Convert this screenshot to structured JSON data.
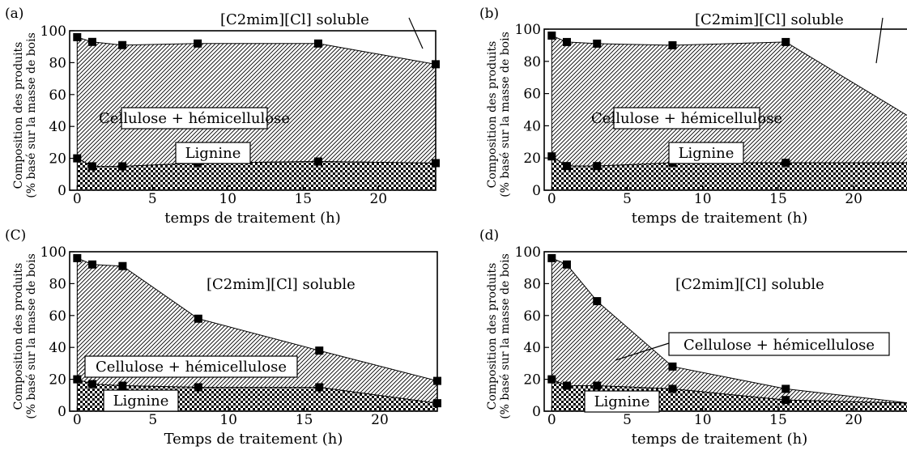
{
  "chart_data": [
    {
      "panel_label": "(a)",
      "type": "area",
      "xlabel": "temps de traitement (h)",
      "ylabel_lines": [
        "Composition des produits",
        "(% basé sur la masse de bois"
      ],
      "xlim": [
        -0.5,
        23.8
      ],
      "ylim": [
        0,
        100
      ],
      "xticks": [
        0,
        5,
        10,
        15,
        20
      ],
      "yticks": [
        0,
        20,
        40,
        60,
        80,
        100
      ],
      "series": [
        {
          "name": "Cellulose + hémicellulose",
          "x": [
            0,
            1,
            3,
            8,
            16,
            23.8
          ],
          "y": [
            96,
            93,
            91,
            92,
            92,
            79
          ]
        },
        {
          "name": "Lignine",
          "x": [
            0,
            1,
            3,
            8,
            16,
            23.8
          ],
          "y": [
            20,
            15,
            15,
            17,
            18,
            17
          ]
        }
      ],
      "region_label": "[C2mim][Cl] soluble"
    },
    {
      "panel_label": "(b)",
      "type": "area",
      "xlabel": "temps de traitement (h)",
      "ylabel_lines": [
        "Composition des produits",
        "(% basé sur la masse de bois"
      ],
      "xlim": [
        -0.5,
        23.8
      ],
      "ylim": [
        0,
        100
      ],
      "xticks": [
        0,
        5,
        10,
        15,
        20
      ],
      "yticks": [
        0,
        20,
        40,
        60,
        80,
        100
      ],
      "series": [
        {
          "name": "Cellulose + hémicellulose",
          "x": [
            0,
            1,
            3,
            8,
            15.5,
            23.8
          ],
          "y": [
            96,
            92,
            91,
            90,
            92,
            45
          ]
        },
        {
          "name": "Lignine",
          "x": [
            0,
            1,
            3,
            8,
            15.5,
            23.8
          ],
          "y": [
            21,
            15,
            15,
            17,
            17,
            17
          ]
        }
      ],
      "region_label": "[C2mim][Cl] soluble"
    },
    {
      "panel_label": "(C)",
      "type": "area",
      "xlabel": "Temps de traitement (h)",
      "ylabel_lines": [
        "Composition des produits",
        "(% basé sur la masse de bois"
      ],
      "xlim": [
        -0.5,
        23.8
      ],
      "ylim": [
        0,
        100
      ],
      "xticks": [
        0,
        5,
        10,
        15,
        20
      ],
      "yticks": [
        0,
        20,
        40,
        60,
        80,
        100
      ],
      "series": [
        {
          "name": "Cellulose + hémicellulose",
          "x": [
            0,
            1,
            3,
            8,
            16,
            23.8
          ],
          "y": [
            96,
            92,
            91,
            58,
            38,
            19
          ]
        },
        {
          "name": "Lignine",
          "x": [
            0,
            1,
            3,
            8,
            16,
            23.8
          ],
          "y": [
            20,
            17,
            16,
            15,
            15,
            5
          ]
        }
      ],
      "region_label": "[C2mim][Cl] soluble"
    },
    {
      "panel_label": "(d)",
      "type": "area",
      "xlabel": "temps de traitement (h)",
      "ylabel_lines": [
        "Composition des produits",
        "(% basé sur la masse de bois"
      ],
      "xlim": [
        -0.5,
        23.8
      ],
      "ylim": [
        0,
        100
      ],
      "xticks": [
        0,
        5,
        10,
        15,
        20
      ],
      "yticks": [
        0,
        20,
        40,
        60,
        80,
        100
      ],
      "series": [
        {
          "name": "Cellulose + hémicellulose",
          "x": [
            0,
            1,
            3,
            8,
            15.5,
            23.8
          ],
          "y": [
            96,
            92,
            69,
            28,
            14,
            5
          ]
        },
        {
          "name": "Lignine",
          "x": [
            0,
            1,
            3,
            8,
            15.5,
            23.8
          ],
          "y": [
            20,
            16,
            16,
            14,
            7,
            5
          ]
        }
      ],
      "region_label": "[C2mim][Cl] soluble"
    }
  ]
}
